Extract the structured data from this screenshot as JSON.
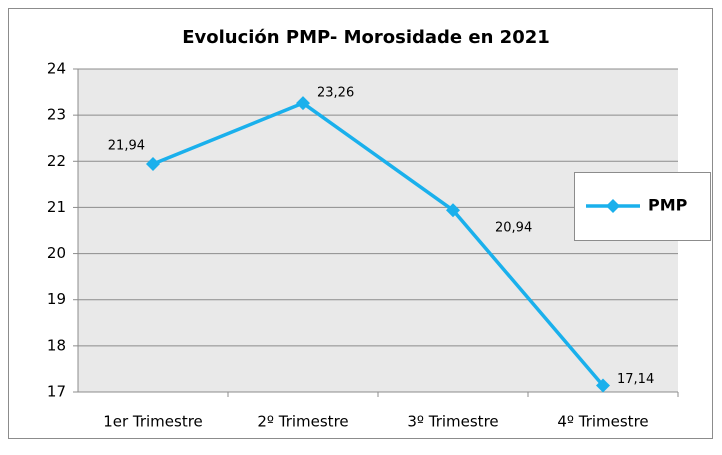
{
  "chart_data": {
    "type": "line",
    "title": "Evolución  PMP- Morosidade  en 2021",
    "categories": [
      "1er Trimestre",
      "2º Trimestre",
      "3º Trimestre",
      "4º Trimestre"
    ],
    "series": [
      {
        "name": "PMP",
        "color": "#1ab0ec",
        "values": [
          21.94,
          23.26,
          20.94,
          17.14
        ],
        "value_labels": [
          "21,94",
          "23,26",
          "20,94",
          "17,14"
        ]
      }
    ],
    "ylim": [
      17,
      24
    ],
    "yticks": [
      17,
      18,
      19,
      20,
      21,
      22,
      23,
      24
    ],
    "grid": true,
    "legend": "right"
  }
}
